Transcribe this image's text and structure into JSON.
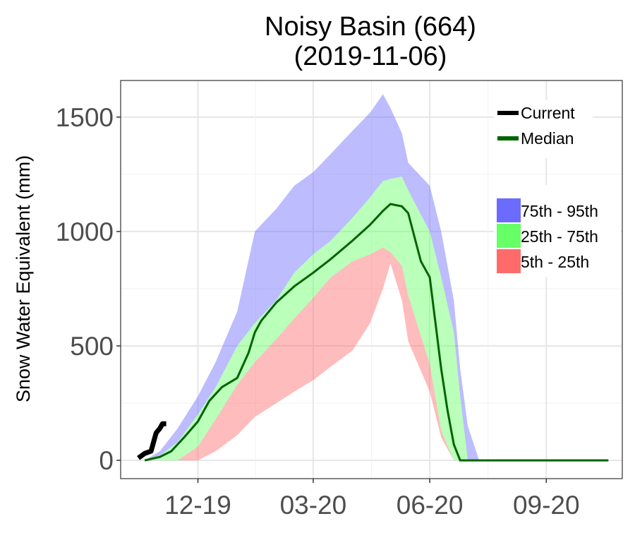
{
  "chart_data": {
    "type": "area",
    "title": "Noisy Basin (664)",
    "subtitle": "(2019-11-06)",
    "xlabel": "",
    "ylabel": "Snow Water Equivalent (mm)",
    "ylim": [
      -80,
      1660
    ],
    "xlim": [
      "2019-10-01",
      "2020-10-31"
    ],
    "yticks": [
      0,
      500,
      1000,
      1500
    ],
    "xticks": [
      {
        "date": "2019-12-01",
        "label": "12-19"
      },
      {
        "date": "2020-03-01",
        "label": "03-20"
      },
      {
        "date": "2020-06-01",
        "label": "06-20"
      },
      {
        "date": "2020-09-01",
        "label": "09-20"
      }
    ],
    "grid": true,
    "legend_position": "right",
    "legend_lines": [
      {
        "label": "Current",
        "color": "#000000"
      },
      {
        "label": "Median",
        "color": "#006400"
      }
    ],
    "legend_bands": [
      {
        "label": "75th - 95th",
        "color": "#6B6BFF"
      },
      {
        "label": "25th - 75th",
        "color": "#66FF66"
      },
      {
        "label": "5th - 25th",
        "color": "#FF6B6B"
      }
    ],
    "percentile_dates": [
      "2019-10-20",
      "2019-11-01",
      "2019-11-15",
      "2019-12-01",
      "2019-12-15",
      "2020-01-01",
      "2020-01-15",
      "2020-02-01",
      "2020-02-15",
      "2020-03-01",
      "2020-03-15",
      "2020-04-01",
      "2020-04-15",
      "2020-04-25",
      "2020-05-01",
      "2020-05-10",
      "2020-05-15",
      "2020-06-01",
      "2020-06-10",
      "2020-06-20",
      "2020-06-25",
      "2020-07-01",
      "2020-07-10",
      "2020-07-15",
      "2020-10-20"
    ],
    "p5": [
      0,
      0,
      0,
      0,
      40,
      110,
      190,
      250,
      300,
      350,
      410,
      480,
      600,
      750,
      860,
      700,
      520,
      300,
      100,
      0,
      0,
      0,
      0,
      0,
      0
    ],
    "p25": [
      0,
      0,
      0,
      60,
      180,
      330,
      430,
      530,
      620,
      710,
      800,
      870,
      900,
      930,
      910,
      850,
      720,
      420,
      130,
      0,
      0,
      0,
      0,
      0,
      0
    ],
    "p75": [
      0,
      20,
      80,
      200,
      320,
      500,
      600,
      700,
      820,
      900,
      960,
      1060,
      1150,
      1220,
      1230,
      1240,
      1180,
      1000,
      800,
      560,
      280,
      0,
      0,
      0,
      0
    ],
    "p95": [
      0,
      40,
      140,
      280,
      430,
      650,
      1000,
      1100,
      1200,
      1260,
      1340,
      1440,
      1520,
      1600,
      1540,
      1430,
      1300,
      1200,
      1000,
      700,
      400,
      150,
      0,
      0,
      0
    ],
    "median": {
      "dates": [
        "2019-10-20",
        "2019-11-01",
        "2019-11-10",
        "2019-11-20",
        "2019-12-01",
        "2019-12-10",
        "2019-12-20",
        "2020-01-01",
        "2020-01-10",
        "2020-01-15",
        "2020-01-20",
        "2020-02-01",
        "2020-02-15",
        "2020-03-01",
        "2020-03-15",
        "2020-04-01",
        "2020-04-15",
        "2020-04-25",
        "2020-05-01",
        "2020-05-10",
        "2020-05-15",
        "2020-05-25",
        "2020-06-01",
        "2020-06-10",
        "2020-06-15",
        "2020-06-20",
        "2020-06-25",
        "2020-07-01",
        "2020-10-20"
      ],
      "values": [
        0,
        15,
        40,
        100,
        170,
        260,
        320,
        360,
        470,
        560,
        610,
        690,
        760,
        820,
        880,
        960,
        1030,
        1090,
        1120,
        1110,
        1080,
        870,
        800,
        400,
        220,
        70,
        0,
        0,
        0
      ]
    },
    "current": {
      "dates": [
        "2019-10-15",
        "2019-10-20",
        "2019-10-25",
        "2019-10-27",
        "2019-10-29",
        "2019-11-01",
        "2019-11-03",
        "2019-11-06"
      ],
      "values": [
        10,
        30,
        40,
        80,
        120,
        140,
        160,
        160
      ]
    }
  }
}
